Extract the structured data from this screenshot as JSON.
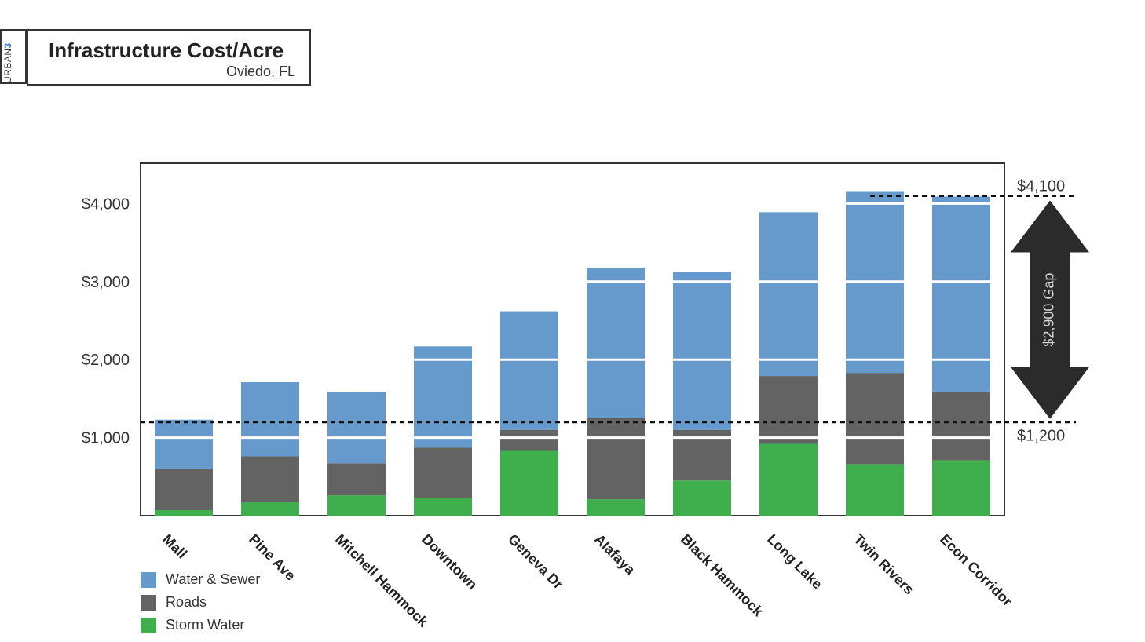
{
  "brand": {
    "text": "URBAN",
    "accent": "3"
  },
  "header": {
    "title": "Infrastructure Cost/Acre",
    "subtitle": "Oviedo, FL"
  },
  "chart_data": {
    "type": "bar",
    "stacked": true,
    "categories": [
      "Mall",
      "Pine Ave",
      "Mitchell Hammock",
      "Downtown",
      "Geneva Dr",
      "Alafaya",
      "Black Hammock",
      "Long Lake",
      "Twin Rivers",
      "Econ Corridor"
    ],
    "series": [
      {
        "name": "Storm Water",
        "color": "#3fae4c",
        "values": [
          70,
          180,
          260,
          230,
          830,
          210,
          450,
          920,
          660,
          710
        ]
      },
      {
        "name": "Roads",
        "color": "#636363",
        "values": [
          530,
          580,
          410,
          640,
          270,
          1040,
          650,
          870,
          1170,
          880
        ]
      },
      {
        "name": "Water & Sewer",
        "color": "#6699cc",
        "values": [
          630,
          950,
          920,
          1300,
          1520,
          1930,
          2020,
          2100,
          2330,
          2500
        ]
      }
    ],
    "legend_order": [
      "Water & Sewer",
      "Roads",
      "Storm Water"
    ],
    "legend_position": "bottom-left",
    "ylim": [
      0,
      4500
    ],
    "yticks": [
      1000,
      2000,
      3000,
      4000
    ],
    "ytick_labels": [
      "$1,000",
      "$2,000",
      "$3,000",
      "$4,000"
    ],
    "grid_lines_white": [
      1000,
      2000,
      3000,
      4000
    ],
    "reference_lines": [
      {
        "value": 4100,
        "label": "$4,100"
      },
      {
        "value": 1200,
        "label": "$1,200"
      }
    ],
    "gap_arrow": {
      "from": 1200,
      "to": 4100,
      "label": "$2,900 Gap",
      "color": "#2b2b2b"
    }
  }
}
